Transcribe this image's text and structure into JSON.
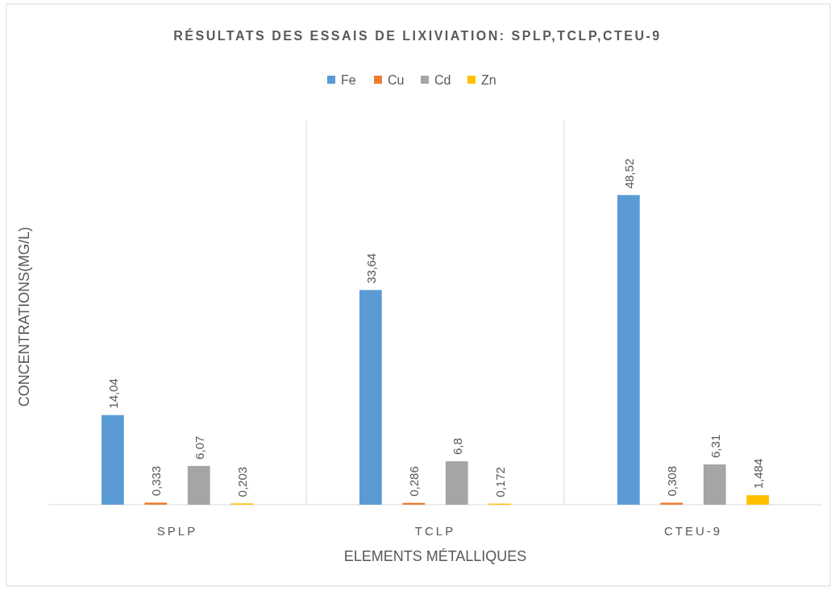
{
  "chart_data": {
    "type": "bar",
    "title": "RÉSULTATS DES ESSAIS DE LIXIVIATION: SPLP,TCLP,CTEU-9",
    "xlabel": "ELEMENTS MÉTALLIQUES",
    "ylabel": "CONCENTRATIONS(MG/L)",
    "categories": [
      "SPLP",
      "TCLP",
      "CTEU-9"
    ],
    "series": [
      {
        "name": "Fe",
        "color": "#5b9bd5",
        "values": [
          14.04,
          33.64,
          48.52
        ],
        "value_labels": [
          "14,04",
          "33,64",
          "48,52"
        ]
      },
      {
        "name": "Cu",
        "color": "#ed7d31",
        "values": [
          0.333,
          0.286,
          0.308
        ],
        "value_labels": [
          "0,333",
          "0,286",
          "0,308"
        ]
      },
      {
        "name": "Cd",
        "color": "#a5a5a5",
        "values": [
          6.07,
          6.8,
          6.31
        ],
        "value_labels": [
          "6,07",
          "6,8",
          "6,31"
        ]
      },
      {
        "name": "Zn",
        "color": "#ffc000",
        "values": [
          0.203,
          0.172,
          1.484
        ],
        "value_labels": [
          "0,203",
          "0,172",
          "1,484"
        ]
      }
    ],
    "grid": "x",
    "legend": "top"
  }
}
